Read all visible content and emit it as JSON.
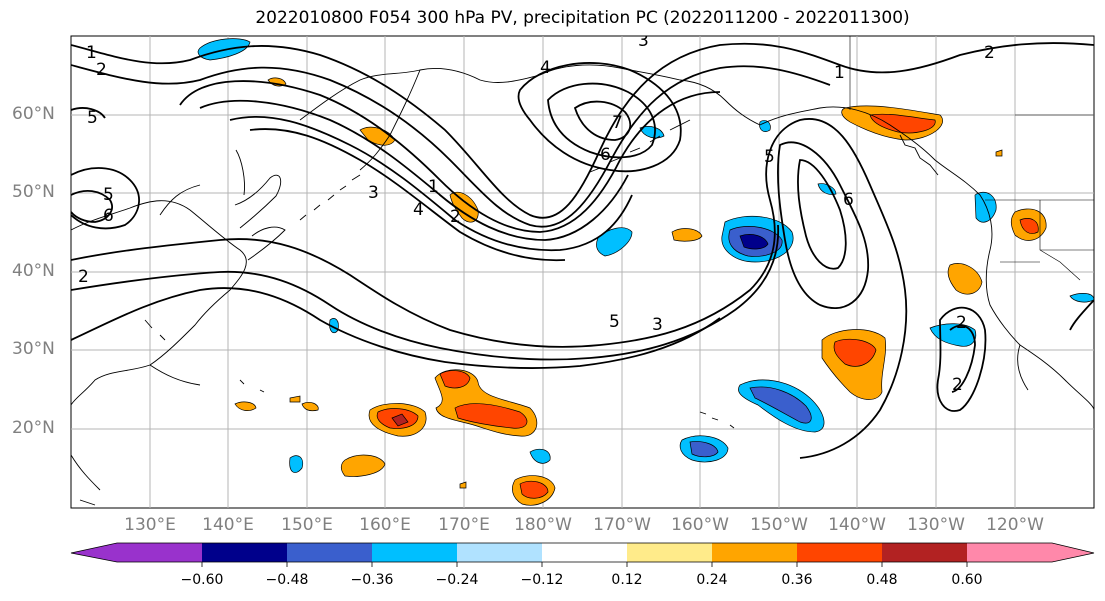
{
  "title": "2022010800 F054 300 hPa PV, precipitation PC (2022011200 - 2022011300)",
  "lat_labels": [
    "60°N",
    "50°N",
    "40°N",
    "30°N",
    "20°N"
  ],
  "lon_labels": [
    "130°E",
    "140°E",
    "150°E",
    "160°E",
    "170°E",
    "180°W",
    "170°W",
    "160°W",
    "150°W",
    "140°W",
    "130°W",
    "120°W"
  ],
  "contour_labels": [
    "1",
    "2",
    "3",
    "4",
    "5",
    "6",
    "7"
  ],
  "colorbar": {
    "tick_labels": [
      "−0.60",
      "−0.48",
      "−0.36",
      "−0.24",
      "−0.12",
      "0.12",
      "0.24",
      "0.36",
      "0.48",
      "0.60"
    ],
    "colors": [
      "#9932cc",
      "#00008b",
      "#3a5fcd",
      "#00bfff",
      "#b0e2ff",
      "#ffffff",
      "#ffeb8a",
      "#ffa500",
      "#ff4500",
      "#b22222",
      "#ff88aa"
    ]
  }
}
